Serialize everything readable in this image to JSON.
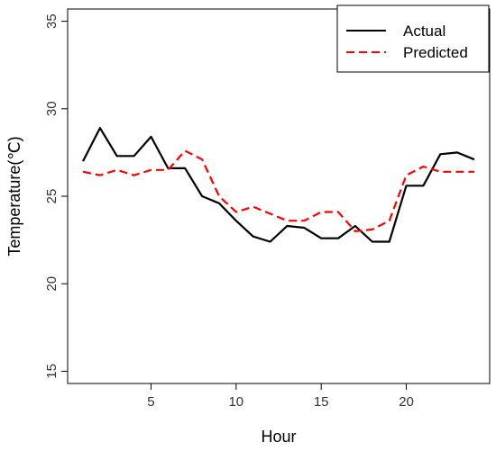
{
  "chart_data": {
    "type": "line",
    "xlabel": "Hour",
    "ylabel": "Temperature(℃)",
    "xlim": [
      0.1,
      24.9
    ],
    "ylim": [
      14.3,
      35.7
    ],
    "x_ticks": [
      5,
      10,
      15,
      20
    ],
    "y_ticks": [
      15,
      20,
      25,
      30,
      35
    ],
    "grid": false,
    "legend_position": "top-right",
    "x": [
      1,
      2,
      3,
      4,
      5,
      6,
      7,
      8,
      9,
      10,
      11,
      12,
      13,
      14,
      15,
      16,
      17,
      18,
      19,
      20,
      21,
      22,
      23,
      24
    ],
    "series": [
      {
        "name": "Actual",
        "color": "#000000",
        "style": "solid",
        "values": [
          27.0,
          28.9,
          27.3,
          27.3,
          28.4,
          26.6,
          26.6,
          25.0,
          24.6,
          23.6,
          22.7,
          22.4,
          23.3,
          23.2,
          22.6,
          22.6,
          23.3,
          22.4,
          22.4,
          25.6,
          25.6,
          27.4,
          27.5,
          27.1
        ]
      },
      {
        "name": "Predicted",
        "color": "#ff0000",
        "style": "dashed",
        "values": [
          26.4,
          26.2,
          26.5,
          26.2,
          26.5,
          26.5,
          27.6,
          27.1,
          25.0,
          24.1,
          24.4,
          24.0,
          23.6,
          23.6,
          24.1,
          24.1,
          23.0,
          23.1,
          23.6,
          26.2,
          26.7,
          26.4,
          26.4,
          26.4
        ]
      }
    ]
  }
}
